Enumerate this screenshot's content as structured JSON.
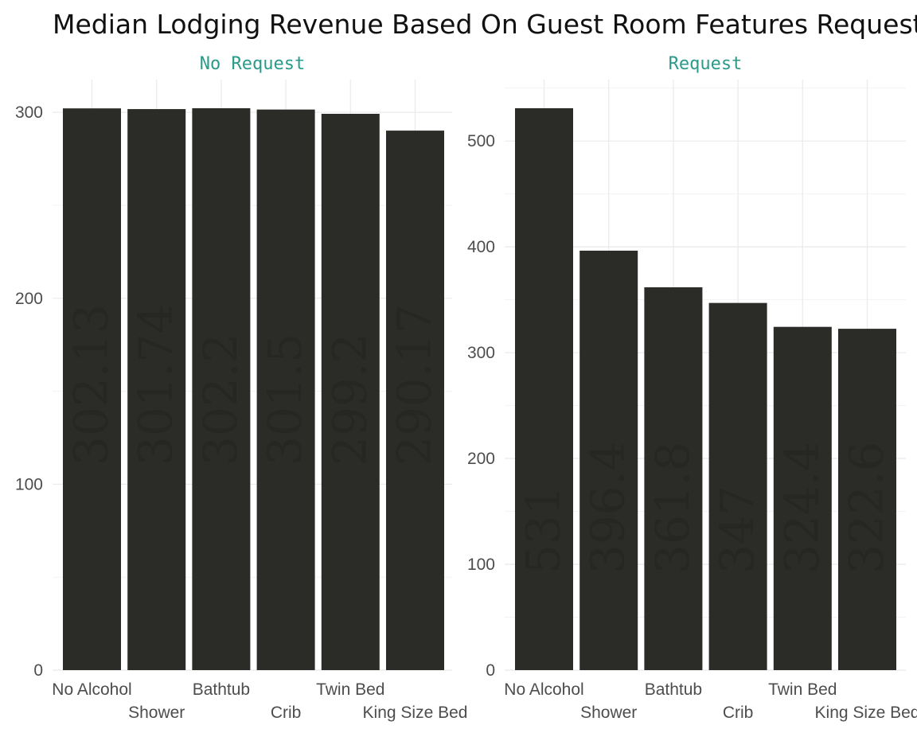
{
  "chart_data": {
    "type": "bar",
    "title": "Median Lodging Revenue Based On Guest Room Features Requested",
    "xlabel": "",
    "ylabel": "",
    "categories": [
      "No Alcohol",
      "Shower",
      "Bathtub",
      "Crib",
      "Twin Bed",
      "King Size Bed"
    ],
    "facets": [
      {
        "name": "No Request",
        "values": [
          302.13,
          301.74,
          302.2,
          301.5,
          299.2,
          290.17
        ],
        "value_labels": [
          "302.13",
          "301.74",
          "302.2",
          "301.5",
          "299.2",
          "290.17"
        ],
        "ylim": [
          0,
          302.2
        ],
        "yticks": [
          0,
          100,
          200,
          300
        ]
      },
      {
        "name": "Request",
        "values": [
          531.0,
          396.4,
          361.8,
          347.0,
          324.4,
          322.6
        ],
        "value_labels": [
          "531",
          "396.4",
          "361.8",
          "347",
          "324.4",
          "322.6"
        ],
        "ylim": [
          0,
          531.0
        ],
        "yticks": [
          0,
          100,
          200,
          300,
          400,
          500
        ]
      }
    ]
  },
  "colors": {
    "bar": "#2b2b27",
    "facet_title": "#2a9a8a",
    "grid": "#ebebeb"
  }
}
